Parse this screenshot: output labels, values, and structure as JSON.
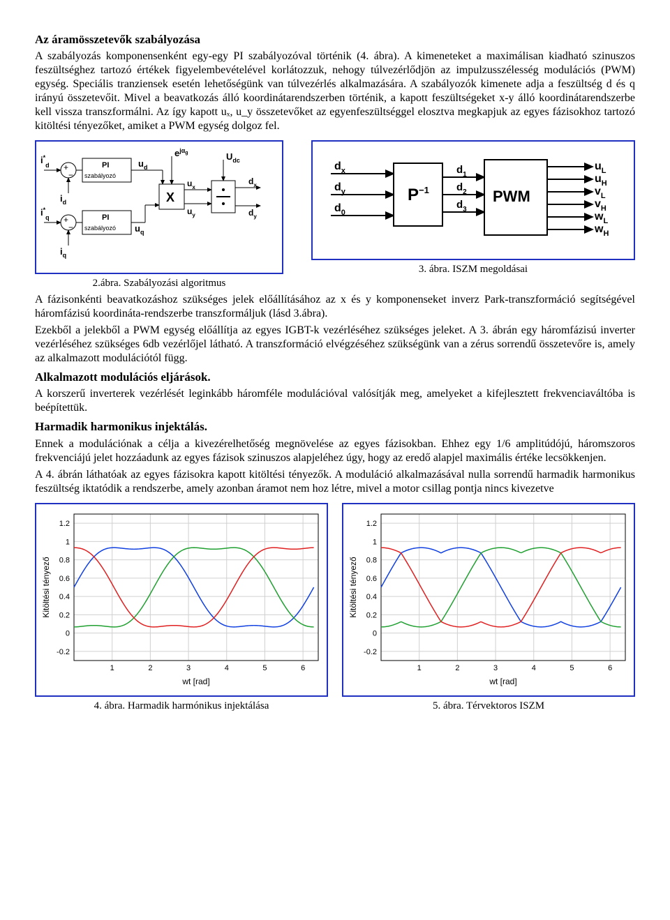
{
  "section1": {
    "title": "Az áramösszetevők szabályozása",
    "para": "A szabályozás komponensenként egy-egy PI szabályozóval történik (4. ábra). A kimeneteket a maximálisan kiadható szinuszos feszültséghez tartozó értékek figyelembevételével korlátozzuk, nehogy túlvezérlődjön az impulzusszélesség modulációs (PWM) egység. Speciális tranziensek esetén lehetőségünk van túlvezérlés alkalmazására. A szabályozók kimenete adja a feszültség d és q irányú összetevőit. Mivel a beavatkozás álló koordinátarendszerben történik, a kapott feszültségeket x-y álló koordinátarendszerbe kell vissza transzformálni. Az így kapott uₓ, u_y összetevőket az egyenfeszültséggel elosztva megkapjuk az egyes fázisokhoz tartozó kitöltési tényezőket, amiket a PWM egység dolgoz fel."
  },
  "fig2": {
    "caption": "2.ábra.  Szabályozási algoritmus",
    "labels": {
      "id_star": "i*_d",
      "id": "i_d",
      "iq_star": "i*_q",
      "iq": "i_q",
      "pi": "PI",
      "pi_sub": "szabályozó",
      "ud": "u_d",
      "uq": "u_q",
      "ux": "u_x",
      "uy": "u_y",
      "ejag": "e^{jα_g}",
      "X": "X",
      "div": "÷",
      "Udc": "U_dc",
      "dx": "d_x",
      "dy": "d_y"
    }
  },
  "fig3": {
    "caption": "3. ábra. ISZM megoldásai",
    "labels": {
      "dx": "d_x",
      "dy": "d_y",
      "d0": "d_0",
      "P": "P",
      "Pexp": "−1",
      "d1": "d_1",
      "d2": "d_2",
      "d3": "d_3",
      "PWM": "PWM",
      "uL": "u_L",
      "uH": "u_H",
      "vL": "v_L",
      "vH": "v_H",
      "wL": "w_L",
      "wH": "w_H"
    }
  },
  "para2": "A fázisonkénti beavatkozáshoz szükséges jelek előállításához az x és y komponenseket inverz Park-transzformáció segítségével háromfázisú koordináta-rendszerbe transzformáljuk (lásd 3.ábra).",
  "para3": "Ezekből a jelekből a PWM egység előállítja az egyes IGBT-k vezérléséhez szükséges jeleket. A 3. ábrán egy háromfázisú inverter vezérléséhez szükséges 6db vezérlőjel látható. A transzformáció elvégzéséhez szükségünk van a zérus sorrendű összetevőre is, amely az alkalmazott modulációtól függ.",
  "section2": {
    "title": "Alkalmazott modulációs eljárások.",
    "para": "A korszerű inverterek vezérlését leginkább háromféle modulációval valósítják meg, amelyeket a kifejlesztett frekvenciaváltóba is beépítettük."
  },
  "section3": {
    "title": "Harmadik harmonikus injektálás.",
    "para1": "Ennek a modulációnak a célja a kivezérelhetőség megnövelése az egyes fázisokban. Ehhez egy 1/6 amplitúdójú, háromszoros frekvenciájú jelet hozzáadunk az egyes fázisok szinuszos alapjeléhez úgy, hogy az eredő alapjel maximális értéke lecsökkenjen.",
    "para2": "A 4. ábrán láthatóak az egyes fázisokra kapott kitöltési tényezők. A moduláció alkalmazásával nulla sorrendű harmadik harmonikus feszültség iktatódik a rendszerbe, amely azonban áramot nem hoz létre, mivel a motor csillag pontja nincs kivezetve"
  },
  "charts": {
    "xlabel": "wt [rad]",
    "ylabel": "Kitöltési tényező",
    "xlim": [
      0,
      6.4
    ],
    "ylim": [
      -0.3,
      1.3
    ],
    "xticks": [
      1,
      2,
      3,
      4,
      5,
      6
    ],
    "yticks": [
      -0.2,
      0,
      0.2,
      0.4,
      0.6,
      0.8,
      1,
      1.2
    ],
    "grid_color": "#d0d0d0",
    "bg_color": "#ffffff",
    "colors": {
      "a": "#1040e0",
      "b": "#20a030",
      "c": "#e02020"
    },
    "axis_fontsize": 11,
    "label_fontsize": 12
  },
  "fig4_caption": "4. ábra. Harmadik harmónikus injektálása",
  "fig5_caption": "5. ábra. Térvektoros ISZM"
}
